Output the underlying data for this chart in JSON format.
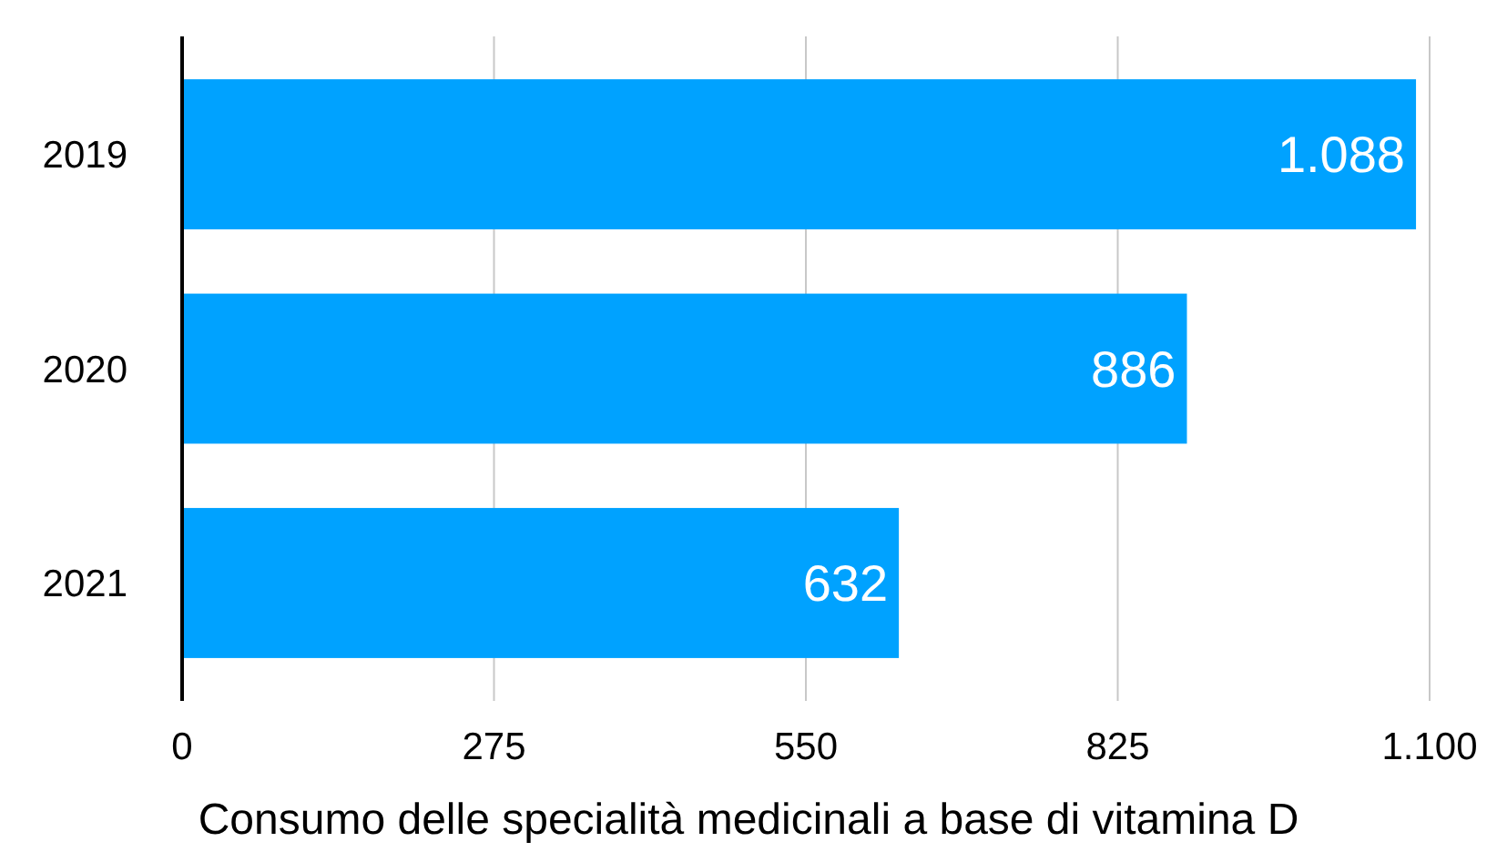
{
  "chart_data": {
    "type": "bar",
    "orientation": "horizontal",
    "xlabel": "Consumo delle specialità medicinali a base di vitamina D",
    "categories": [
      "2019",
      "2020",
      "2021"
    ],
    "series": [
      {
        "color": "#00a2ff",
        "values": [
          1088,
          886,
          632
        ],
        "value_labels": [
          "1.088",
          "886",
          "632"
        ]
      }
    ],
    "xlim": [
      0,
      1100
    ],
    "xticks": [
      0,
      275,
      550,
      825,
      {
        "value": 1100,
        "label": "1.100"
      }
    ],
    "grid": "x"
  }
}
